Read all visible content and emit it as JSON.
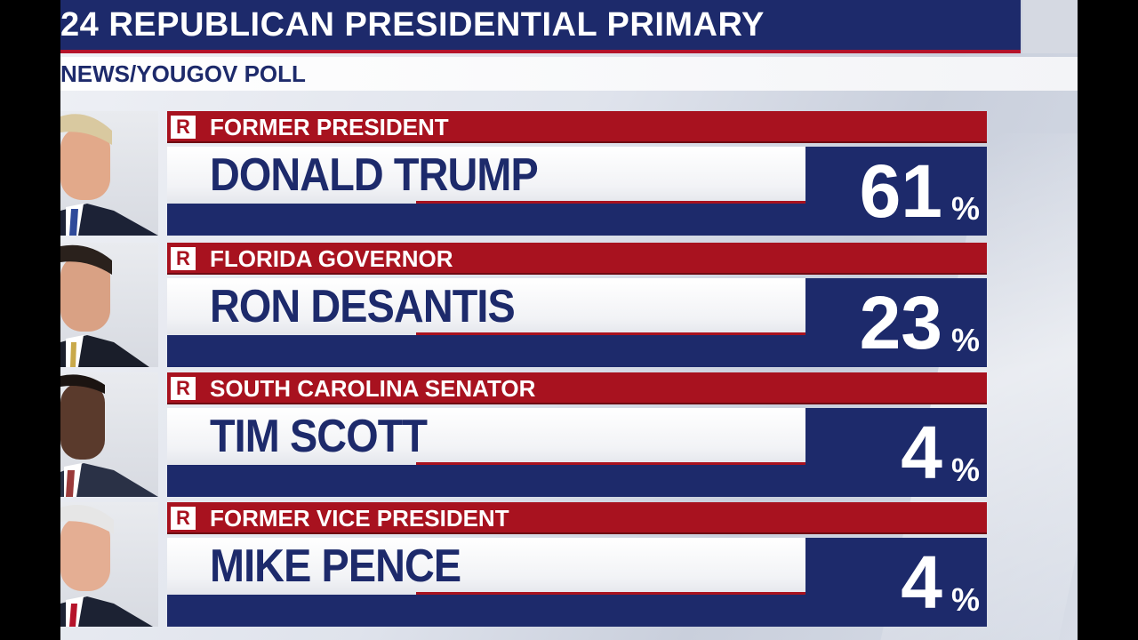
{
  "header": {
    "title": "24 REPUBLICAN PRESIDENTIAL PRIMARY",
    "subtitle": "NEWS/YOUGOV POLL"
  },
  "colors": {
    "navy": "#1d2a6b",
    "red": "#a8121f",
    "white": "#ffffff"
  },
  "candidates": [
    {
      "party": "R",
      "role": "FORMER PRESIDENT",
      "name": "DONALD TRUMP",
      "percent": "61",
      "percent_sign": "%",
      "hair": "#d9c9a0",
      "suit": "#1c2236",
      "tie": "#2f4a9a"
    },
    {
      "party": "R",
      "role": "FLORIDA GOVERNOR",
      "name": "RON DESANTIS",
      "percent": "23",
      "percent_sign": "%",
      "hair": "#2a211c",
      "suit": "#1a1e2a",
      "tie": "#c9a94a"
    },
    {
      "party": "R",
      "role": "SOUTH CAROLINA SENATOR",
      "name": "TIM SCOTT",
      "percent": "4",
      "percent_sign": "%",
      "hair": "#1b1411",
      "suit": "#2a3146",
      "tie": "#9a3a3a"
    },
    {
      "party": "R",
      "role": "FORMER VICE PRESIDENT",
      "name": "MIKE PENCE",
      "percent": "4",
      "percent_sign": "%",
      "hair": "#e6e6e6",
      "suit": "#1c2233",
      "tie": "#b5132a"
    }
  ]
}
